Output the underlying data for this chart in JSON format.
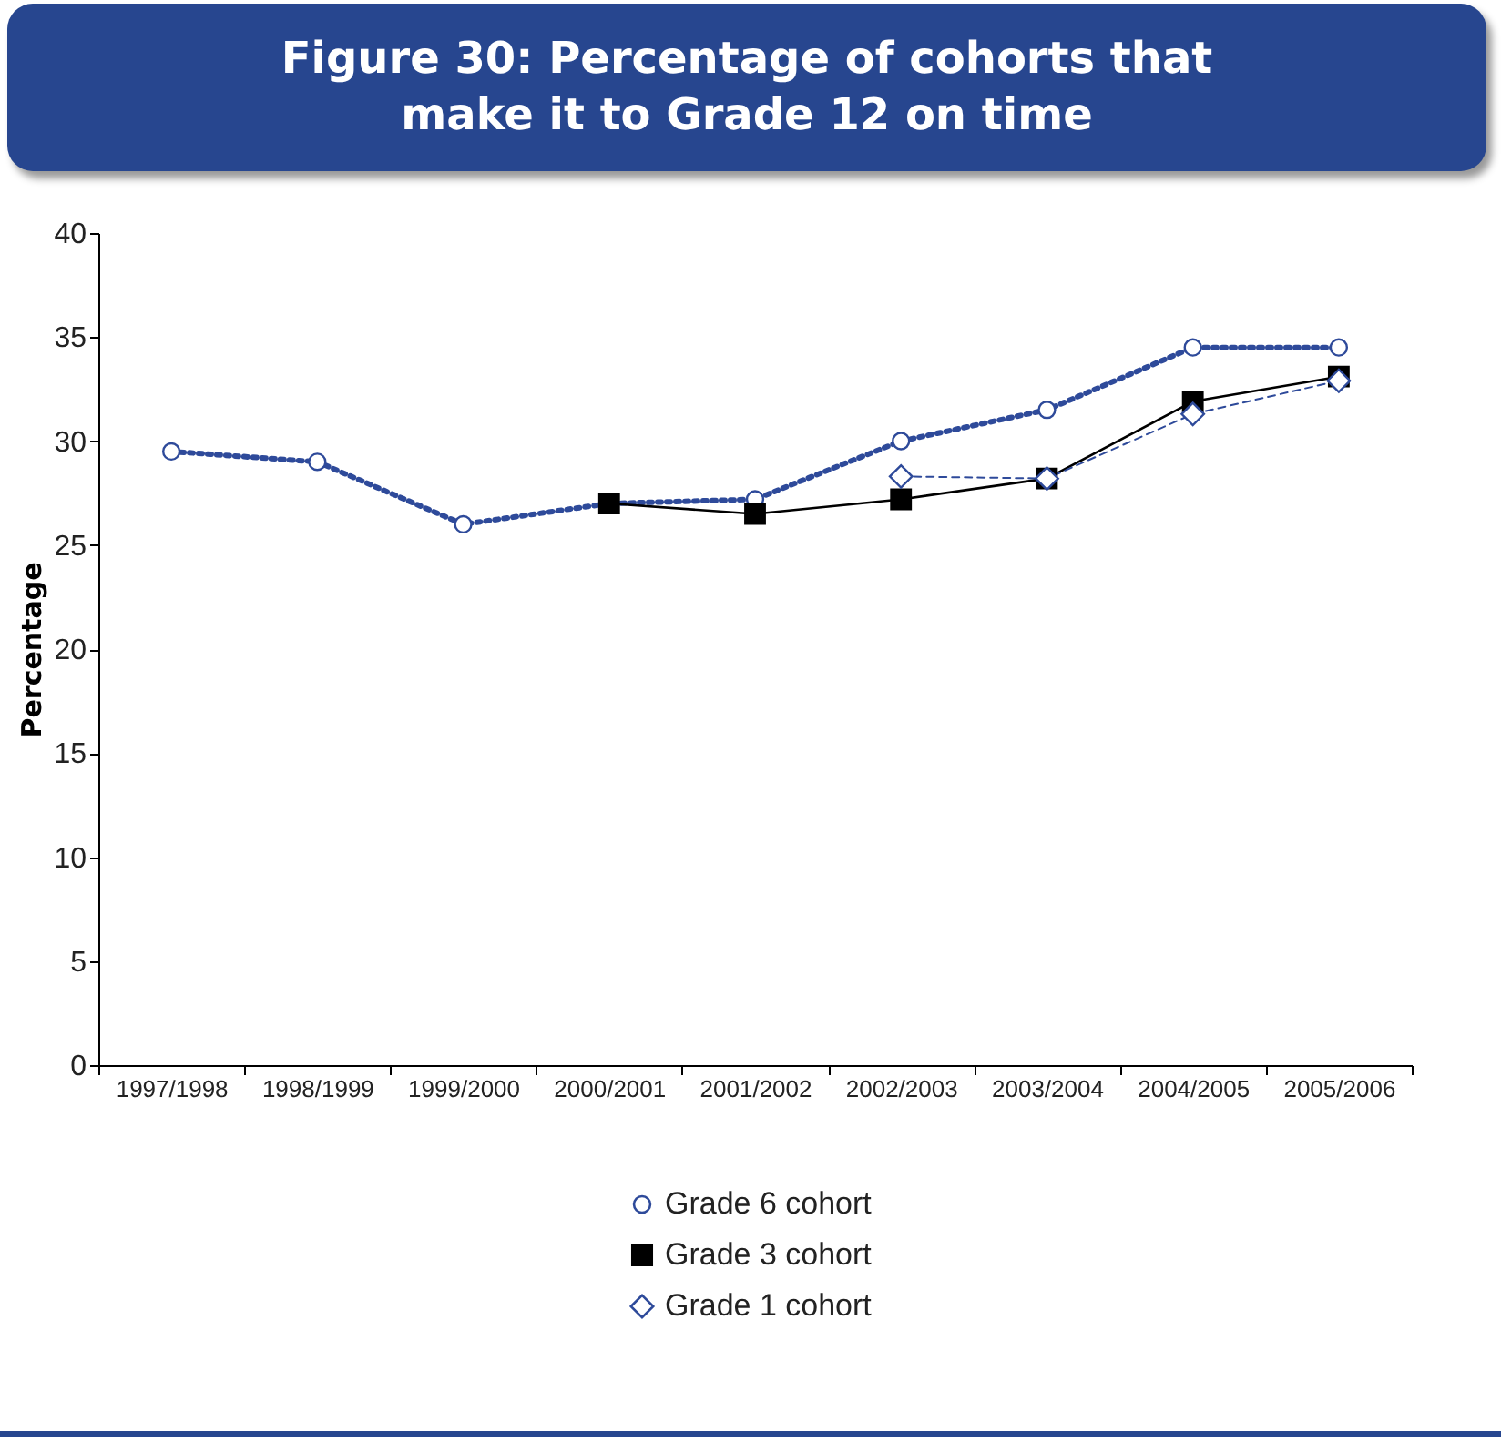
{
  "chart_data": {
    "type": "line",
    "title": "Figure 30: Percentage of cohorts that make it to Grade 12 on time",
    "ylabel": "Percentage",
    "categories": [
      "1997/1998",
      "1998/1999",
      "1999/2000",
      "2000/2001",
      "2001/2002",
      "2002/2003",
      "2003/2004",
      "2004/2005",
      "2005/2006"
    ],
    "series": [
      {
        "name": "Grade 6 cohort",
        "color": "#2e4a9a",
        "marker": "circle",
        "line_style": "dotted",
        "values": [
          29.5,
          29,
          26,
          27,
          27.2,
          30,
          31.5,
          34.5,
          34.5
        ]
      },
      {
        "name": "Grade 3 cohort",
        "color": "#000000",
        "marker": "square",
        "line_style": "solid",
        "values": [
          null,
          null,
          null,
          27,
          26.5,
          27.2,
          28.2,
          31.9,
          33.1
        ]
      },
      {
        "name": "Grade 1 cohort",
        "color": "#2e4a9a",
        "marker": "diamond",
        "line_style": "dashed",
        "values": [
          null,
          null,
          null,
          null,
          null,
          28.3,
          28.2,
          31.3,
          32.9
        ]
      }
    ],
    "ylim": [
      0,
      40
    ],
    "yticks": [
      0,
      5,
      10,
      15,
      20,
      25,
      30,
      35,
      40
    ],
    "grid": false,
    "legend": "bottom"
  }
}
